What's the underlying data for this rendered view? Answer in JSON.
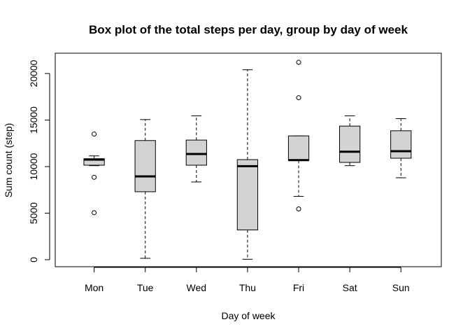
{
  "chart_data": {
    "type": "box",
    "title": "Box plot of the total steps per day, group by day of week",
    "xlabel": "Day of week",
    "ylabel": "Sum count (step)",
    "ylim": [
      0,
      21200
    ],
    "yticks": [
      0,
      5000,
      10000,
      15000,
      20000
    ],
    "grid": false,
    "box_fill": "#d3d3d3",
    "categories": [
      "Mon",
      "Tue",
      "Wed",
      "Thu",
      "Fri",
      "Sat",
      "Sun"
    ],
    "boxes": [
      {
        "category": "Mon",
        "whisker_low": 10100,
        "q1": 10150,
        "median": 10750,
        "q3": 10850,
        "whisker_high": 11150,
        "outliers": [
          13500,
          8850,
          5050
        ]
      },
      {
        "category": "Tue",
        "whisker_low": 150,
        "q1": 7300,
        "median": 8950,
        "q3": 12800,
        "whisker_high": 15050,
        "outliers": []
      },
      {
        "category": "Wed",
        "whisker_low": 8350,
        "q1": 10150,
        "median": 11350,
        "q3": 12850,
        "whisker_high": 15450,
        "outliers": []
      },
      {
        "category": "Thu",
        "whisker_low": 50,
        "q1": 3200,
        "median": 10050,
        "q3": 10750,
        "whisker_high": 20400,
        "outliers": []
      },
      {
        "category": "Fri",
        "whisker_low": 6800,
        "q1": 10650,
        "median": 10700,
        "q3": 13300,
        "whisker_high": 13300,
        "outliers": [
          21200,
          17400,
          5450
        ]
      },
      {
        "category": "Sat",
        "whisker_low": 10100,
        "q1": 10450,
        "median": 11600,
        "q3": 14350,
        "whisker_high": 15450,
        "outliers": []
      },
      {
        "category": "Sun",
        "whisker_low": 8800,
        "q1": 10900,
        "median": 11650,
        "q3": 13850,
        "whisker_high": 15150,
        "outliers": []
      }
    ]
  }
}
